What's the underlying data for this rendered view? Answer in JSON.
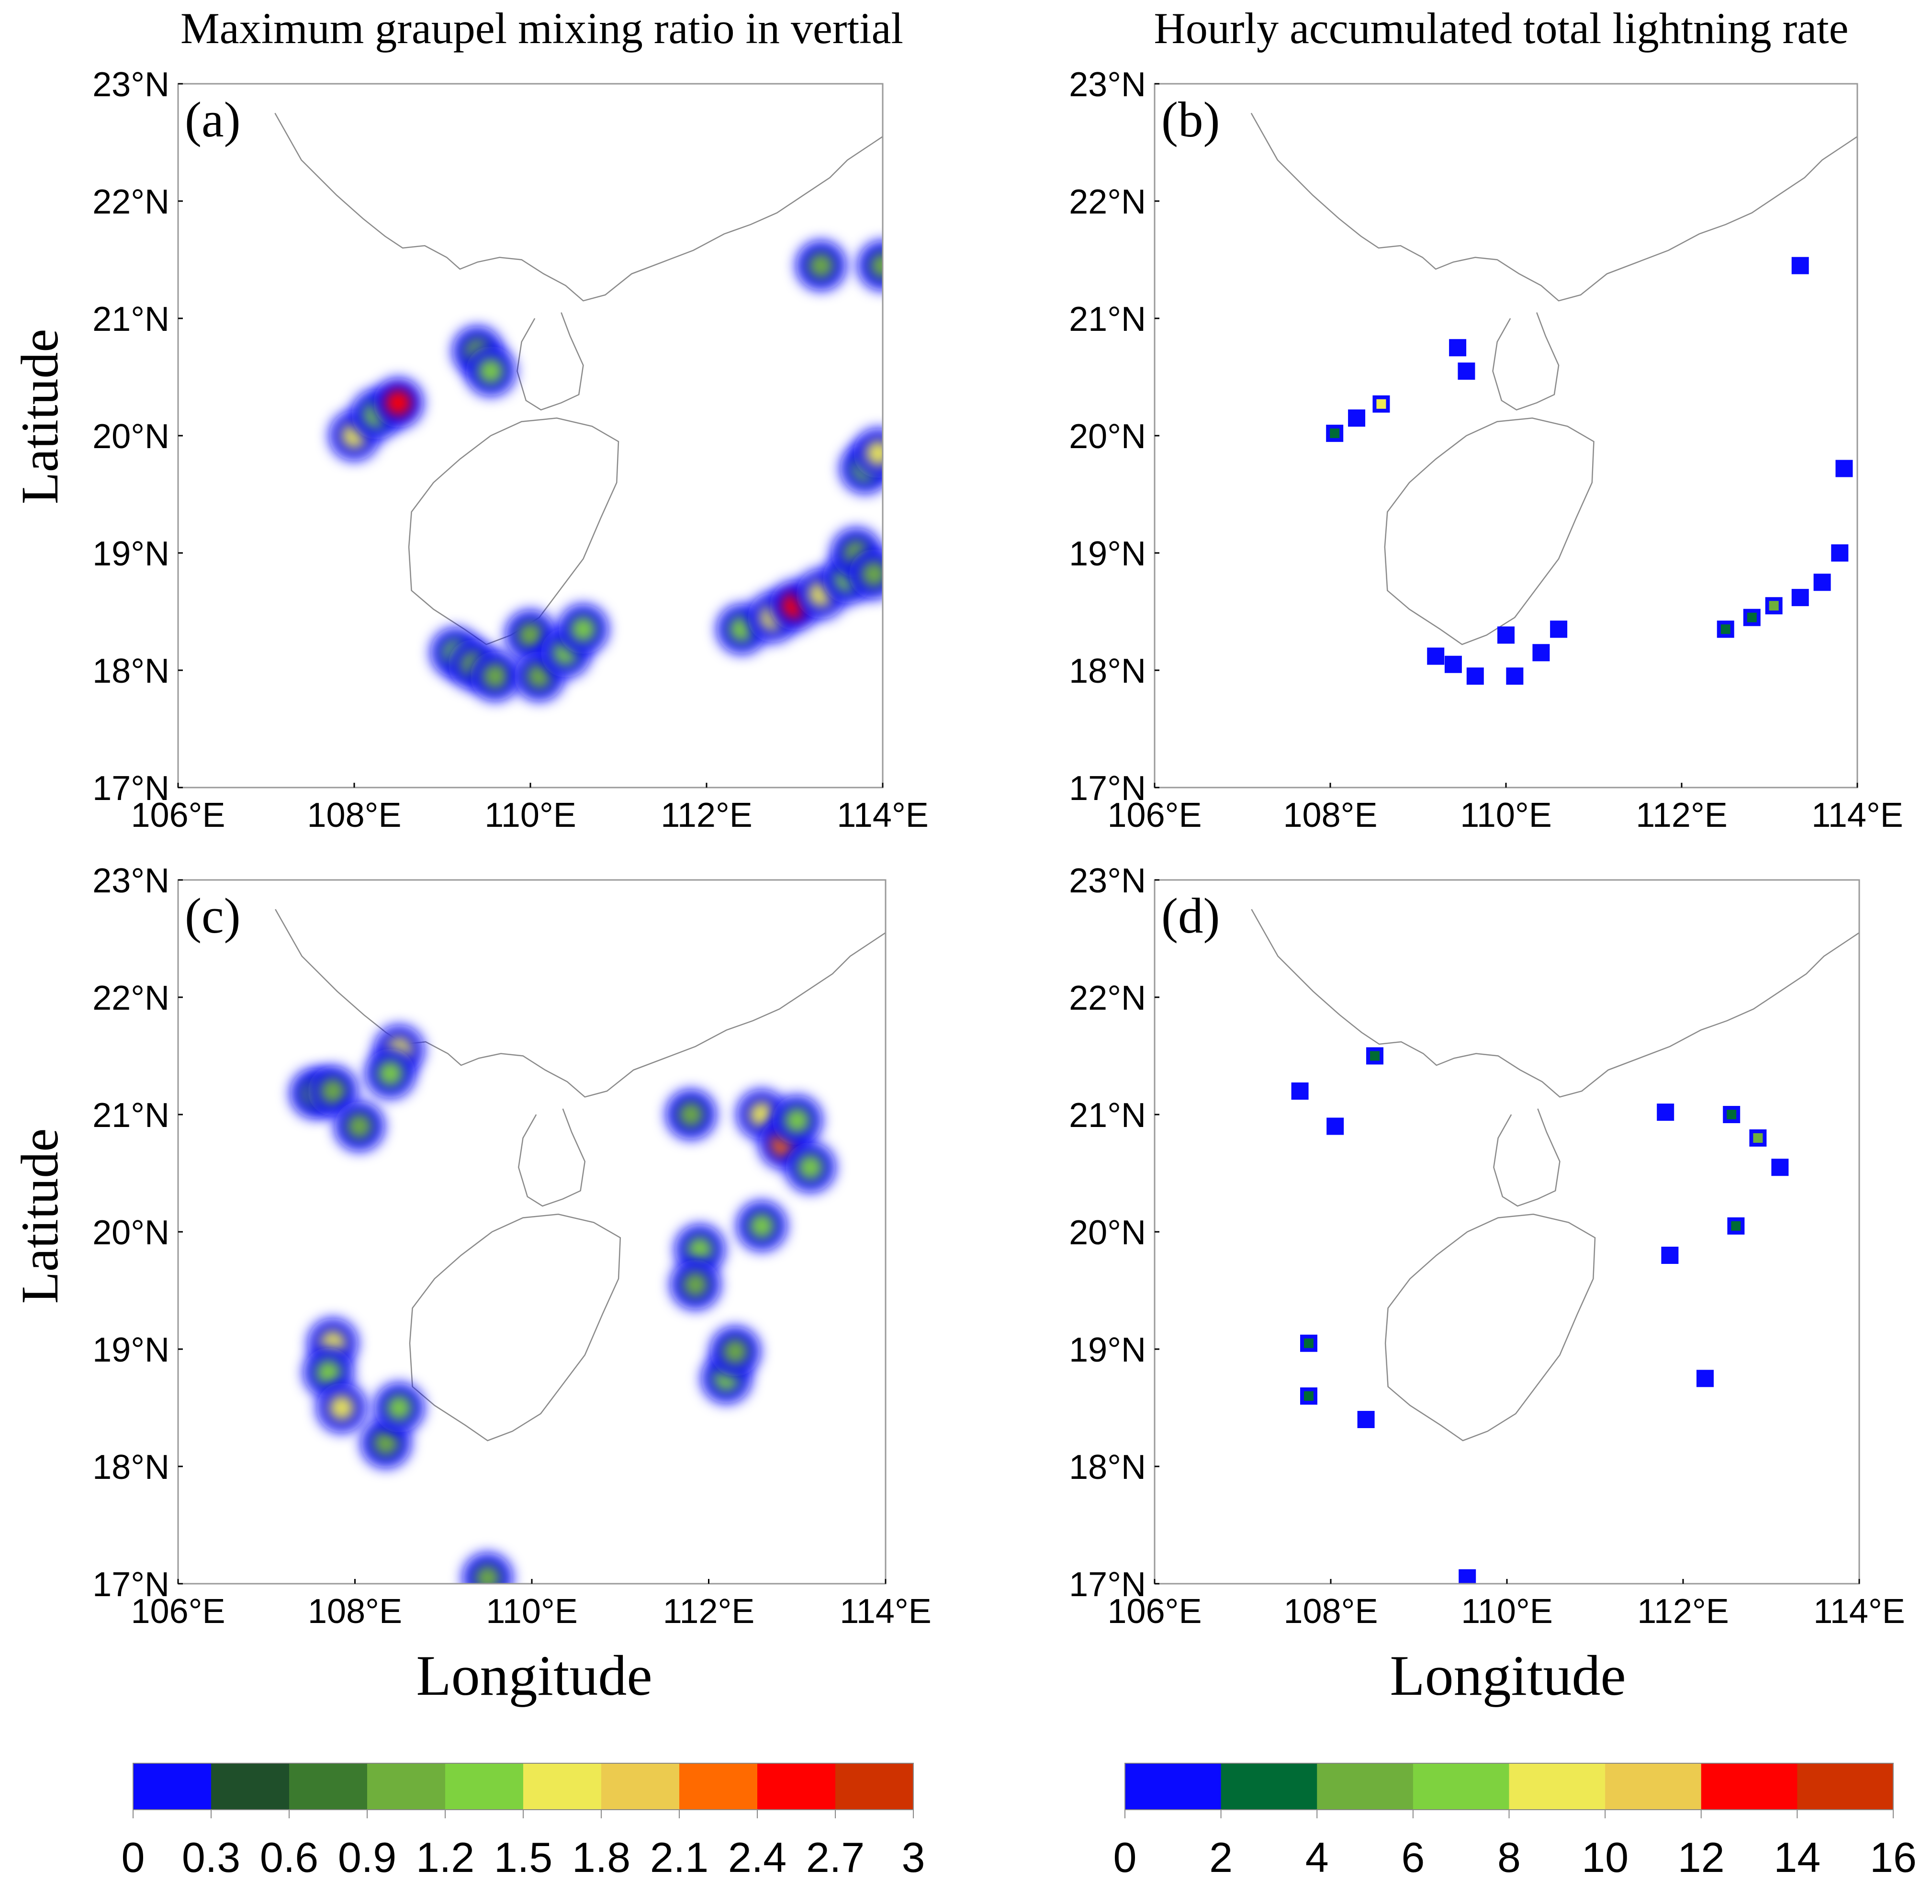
{
  "figure": {
    "left_column_title": "Maximum graupel mixing ratio in vertial",
    "right_column_title": "Hourly accumulated total lightning rate",
    "xlabel": "Longitude",
    "ylabel": "Latitude"
  },
  "chart_data": [
    {
      "id": "a",
      "type": "map-heatmap",
      "panel_label": "(a)",
      "variable": "graupel",
      "xlim": [
        106,
        114
      ],
      "ylim": [
        17,
        23
      ],
      "xticks": [
        "106°E",
        "108°E",
        "110°E",
        "112°E",
        "114°E"
      ],
      "yticks": [
        "17°N",
        "18°N",
        "19°N",
        "20°N",
        "21°N",
        "22°N",
        "23°N"
      ],
      "cells": [
        {
          "lon": 108.0,
          "lat": 20.0,
          "v": 1.6
        },
        {
          "lon": 108.25,
          "lat": 20.18,
          "v": 1.2
        },
        {
          "lon": 108.5,
          "lat": 20.28,
          "v": 2.6
        },
        {
          "lon": 109.4,
          "lat": 20.72,
          "v": 1.0
        },
        {
          "lon": 109.55,
          "lat": 20.55,
          "v": 1.4
        },
        {
          "lon": 109.15,
          "lat": 18.15,
          "v": 1.2
        },
        {
          "lon": 109.35,
          "lat": 18.05,
          "v": 1.0
        },
        {
          "lon": 109.6,
          "lat": 17.95,
          "v": 0.9
        },
        {
          "lon": 110.0,
          "lat": 18.3,
          "v": 1.1
        },
        {
          "lon": 110.1,
          "lat": 17.95,
          "v": 1.0
        },
        {
          "lon": 110.4,
          "lat": 18.15,
          "v": 1.2
        },
        {
          "lon": 110.6,
          "lat": 18.35,
          "v": 1.3
        },
        {
          "lon": 112.4,
          "lat": 18.35,
          "v": 1.2
        },
        {
          "lon": 112.75,
          "lat": 18.45,
          "v": 1.7
        },
        {
          "lon": 113.0,
          "lat": 18.55,
          "v": 2.5
        },
        {
          "lon": 113.3,
          "lat": 18.65,
          "v": 1.5
        },
        {
          "lon": 113.6,
          "lat": 18.78,
          "v": 1.4
        },
        {
          "lon": 113.7,
          "lat": 19.0,
          "v": 1.0
        },
        {
          "lon": 113.9,
          "lat": 18.82,
          "v": 0.9
        },
        {
          "lon": 113.8,
          "lat": 19.72,
          "v": 1.2
        },
        {
          "lon": 113.95,
          "lat": 19.85,
          "v": 1.6
        },
        {
          "lon": 113.3,
          "lat": 21.45,
          "v": 1.1
        },
        {
          "lon": 114.0,
          "lat": 21.45,
          "v": 0.9
        }
      ]
    },
    {
      "id": "b",
      "type": "map-heatmap",
      "panel_label": "(b)",
      "variable": "lightning",
      "xlim": [
        106,
        114
      ],
      "ylim": [
        17,
        23
      ],
      "xticks": [
        "106°E",
        "108°E",
        "110°E",
        "112°E",
        "114°E"
      ],
      "yticks": [
        "17°N",
        "18°N",
        "19°N",
        "20°N",
        "21°N",
        "22°N",
        "23°N"
      ],
      "cells": [
        {
          "lon": 108.05,
          "lat": 20.02,
          "v": 3
        },
        {
          "lon": 108.3,
          "lat": 20.15,
          "v": 1
        },
        {
          "lon": 108.58,
          "lat": 20.27,
          "v": 9
        },
        {
          "lon": 109.45,
          "lat": 20.75,
          "v": 1
        },
        {
          "lon": 109.55,
          "lat": 20.55,
          "v": 1
        },
        {
          "lon": 109.2,
          "lat": 18.12,
          "v": 1
        },
        {
          "lon": 109.4,
          "lat": 18.05,
          "v": 1
        },
        {
          "lon": 109.65,
          "lat": 17.95,
          "v": 1
        },
        {
          "lon": 110.0,
          "lat": 18.3,
          "v": 1
        },
        {
          "lon": 110.1,
          "lat": 17.95,
          "v": 1
        },
        {
          "lon": 110.4,
          "lat": 18.15,
          "v": 1
        },
        {
          "lon": 110.6,
          "lat": 18.35,
          "v": 1
        },
        {
          "lon": 112.5,
          "lat": 18.35,
          "v": 3
        },
        {
          "lon": 112.8,
          "lat": 18.45,
          "v": 3
        },
        {
          "lon": 113.05,
          "lat": 18.55,
          "v": 5
        },
        {
          "lon": 113.35,
          "lat": 18.62,
          "v": 1
        },
        {
          "lon": 113.6,
          "lat": 18.75,
          "v": 1
        },
        {
          "lon": 113.8,
          "lat": 19.0,
          "v": 1
        },
        {
          "lon": 113.85,
          "lat": 19.72,
          "v": 1
        },
        {
          "lon": 113.35,
          "lat": 21.45,
          "v": 1
        }
      ]
    },
    {
      "id": "c",
      "type": "map-heatmap",
      "panel_label": "(c)",
      "variable": "graupel",
      "xlim": [
        106,
        114
      ],
      "ylim": [
        17,
        23
      ],
      "xticks": [
        "106°E",
        "108°E",
        "110°E",
        "112°E",
        "114°E"
      ],
      "yticks": [
        "17°N",
        "18°N",
        "19°N",
        "20°N",
        "21°N",
        "22°N",
        "23°N"
      ],
      "cells": [
        {
          "lon": 108.5,
          "lat": 21.55,
          "v": 1.7
        },
        {
          "lon": 108.4,
          "lat": 21.35,
          "v": 1.2
        },
        {
          "lon": 107.55,
          "lat": 21.18,
          "v": 0.9
        },
        {
          "lon": 107.75,
          "lat": 21.2,
          "v": 1.0
        },
        {
          "lon": 108.05,
          "lat": 20.9,
          "v": 1.1
        },
        {
          "lon": 107.75,
          "lat": 19.05,
          "v": 1.5
        },
        {
          "lon": 107.7,
          "lat": 18.8,
          "v": 1.3
        },
        {
          "lon": 107.85,
          "lat": 18.5,
          "v": 1.6
        },
        {
          "lon": 108.35,
          "lat": 18.2,
          "v": 1.1
        },
        {
          "lon": 108.5,
          "lat": 18.5,
          "v": 1.3
        },
        {
          "lon": 109.5,
          "lat": 17.05,
          "v": 1.1
        },
        {
          "lon": 111.8,
          "lat": 21.0,
          "v": 0.9
        },
        {
          "lon": 111.9,
          "lat": 19.85,
          "v": 1.4
        },
        {
          "lon": 111.85,
          "lat": 19.55,
          "v": 1.0
        },
        {
          "lon": 112.2,
          "lat": 18.75,
          "v": 1.2
        },
        {
          "lon": 112.3,
          "lat": 18.98,
          "v": 0.9
        },
        {
          "lon": 112.6,
          "lat": 20.05,
          "v": 1.4
        },
        {
          "lon": 112.6,
          "lat": 21.0,
          "v": 1.5
        },
        {
          "lon": 112.85,
          "lat": 20.75,
          "v": 2.3
        },
        {
          "lon": 113.0,
          "lat": 20.95,
          "v": 1.3
        },
        {
          "lon": 113.15,
          "lat": 20.55,
          "v": 1.2
        }
      ]
    },
    {
      "id": "d",
      "type": "map-heatmap",
      "panel_label": "(d)",
      "variable": "lightning",
      "xlim": [
        106,
        114
      ],
      "ylim": [
        17,
        23
      ],
      "xticks": [
        "106°E",
        "108°E",
        "110°E",
        "112°E",
        "114°E"
      ],
      "yticks": [
        "17°N",
        "18°N",
        "19°N",
        "20°N",
        "21°N",
        "22°N",
        "23°N"
      ],
      "cells": [
        {
          "lon": 108.5,
          "lat": 21.5,
          "v": 3
        },
        {
          "lon": 107.65,
          "lat": 21.2,
          "v": 1
        },
        {
          "lon": 108.05,
          "lat": 20.9,
          "v": 1
        },
        {
          "lon": 107.75,
          "lat": 19.05,
          "v": 3
        },
        {
          "lon": 107.75,
          "lat": 18.6,
          "v": 3
        },
        {
          "lon": 108.4,
          "lat": 18.4,
          "v": 1
        },
        {
          "lon": 109.55,
          "lat": 17.05,
          "v": 1
        },
        {
          "lon": 111.8,
          "lat": 21.02,
          "v": 1
        },
        {
          "lon": 111.85,
          "lat": 19.8,
          "v": 1
        },
        {
          "lon": 112.25,
          "lat": 18.75,
          "v": 1
        },
        {
          "lon": 112.6,
          "lat": 20.05,
          "v": 3
        },
        {
          "lon": 112.55,
          "lat": 21.0,
          "v": 3
        },
        {
          "lon": 112.85,
          "lat": 20.8,
          "v": 5
        },
        {
          "lon": 113.1,
          "lat": 20.55,
          "v": 1
        }
      ]
    }
  ],
  "colorbars": [
    {
      "id": "graupel",
      "ticks": [
        "0",
        "0.3",
        "0.6",
        "0.9",
        "1.2",
        "1.5",
        "1.8",
        "2.1",
        "2.4",
        "2.7",
        "3"
      ],
      "bounds": [
        0,
        0.3,
        0.6,
        0.9,
        1.2,
        1.5,
        1.8,
        2.1,
        2.4,
        2.7,
        3
      ],
      "colors": [
        "#0a0aff",
        "#1f4f2a",
        "#3b7a2e",
        "#6faf3c",
        "#7ed23f",
        "#eee954",
        "#eccb4f",
        "#ff6a00",
        "#ff0000",
        "#cf3200"
      ]
    },
    {
      "id": "lightning",
      "ticks": [
        "0",
        "2",
        "4",
        "6",
        "8",
        "10",
        "12",
        "14",
        "16"
      ],
      "bounds": [
        0,
        2,
        4,
        6,
        8,
        10,
        12,
        14,
        16
      ],
      "colors": [
        "#0a0aff",
        "#006b35",
        "#6faf3c",
        "#7ed23f",
        "#eee954",
        "#eccb4f",
        "#ff0000",
        "#cf3200"
      ]
    }
  ]
}
